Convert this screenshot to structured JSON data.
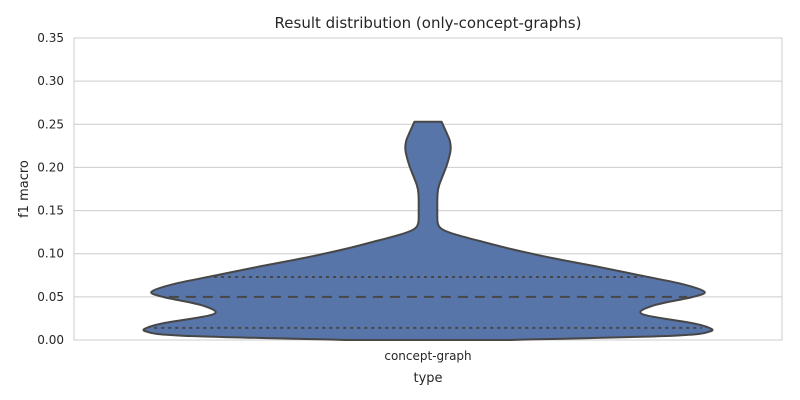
{
  "chart_data": {
    "type": "violin",
    "title": "Result distribution (only-concept-graphs)",
    "xlabel": "type",
    "ylabel": "f1 macro",
    "categories": [
      "concept-graph"
    ],
    "ylim": [
      0.0,
      0.35
    ],
    "yticks": [
      "0.00",
      "0.05",
      "0.10",
      "0.15",
      "0.20",
      "0.25",
      "0.30",
      "0.35"
    ],
    "grid": true,
    "color": "#5875a9",
    "edge_color": "#474747",
    "range": [
      0.0,
      0.253
    ],
    "quartiles": {
      "q1": 0.014,
      "median": 0.05,
      "q3": 0.073
    },
    "density_profile": [
      {
        "y": 0.0,
        "w": 0.29
      },
      {
        "y": 0.005,
        "w": 0.87
      },
      {
        "y": 0.01,
        "w": 1.0
      },
      {
        "y": 0.015,
        "w": 0.99
      },
      {
        "y": 0.02,
        "w": 0.93
      },
      {
        "y": 0.03,
        "w": 0.76
      },
      {
        "y": 0.04,
        "w": 0.8
      },
      {
        "y": 0.05,
        "w": 0.94
      },
      {
        "y": 0.056,
        "w": 0.98
      },
      {
        "y": 0.065,
        "w": 0.9
      },
      {
        "y": 0.075,
        "w": 0.75
      },
      {
        "y": 0.085,
        "w": 0.6
      },
      {
        "y": 0.095,
        "w": 0.44
      },
      {
        "y": 0.105,
        "w": 0.3
      },
      {
        "y": 0.115,
        "w": 0.18
      },
      {
        "y": 0.122,
        "w": 0.1
      },
      {
        "y": 0.128,
        "w": 0.052
      },
      {
        "y": 0.135,
        "w": 0.035
      },
      {
        "y": 0.15,
        "w": 0.033
      },
      {
        "y": 0.17,
        "w": 0.034
      },
      {
        "y": 0.18,
        "w": 0.04
      },
      {
        "y": 0.19,
        "w": 0.052
      },
      {
        "y": 0.205,
        "w": 0.069
      },
      {
        "y": 0.22,
        "w": 0.08
      },
      {
        "y": 0.23,
        "w": 0.078
      },
      {
        "y": 0.24,
        "w": 0.066
      },
      {
        "y": 0.248,
        "w": 0.055
      },
      {
        "y": 0.253,
        "w": 0.048
      }
    ]
  }
}
